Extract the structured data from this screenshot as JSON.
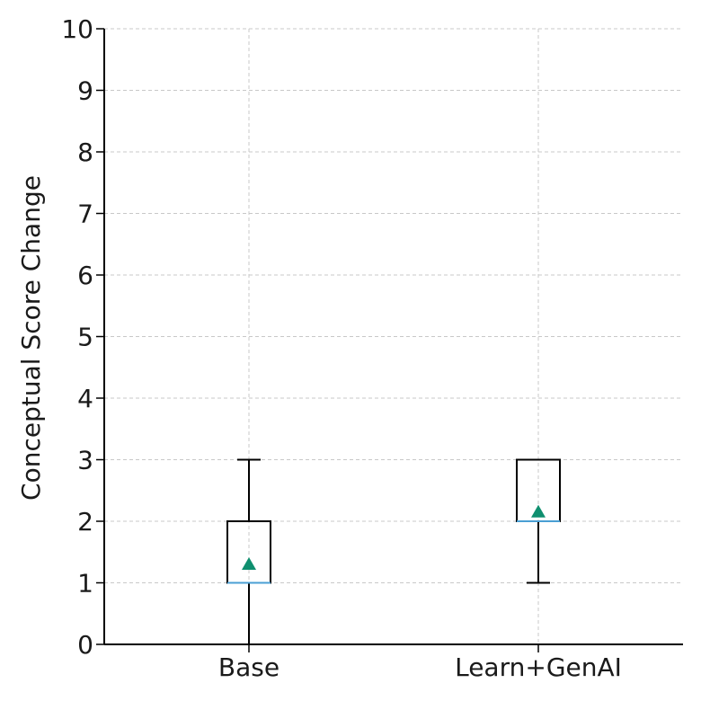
{
  "chart_data": {
    "type": "boxplot",
    "title": "",
    "xlabel": "",
    "ylabel": "Conceptual Score Change",
    "ylim": [
      0,
      10
    ],
    "yticks": [
      0,
      1,
      2,
      3,
      4,
      5,
      6,
      7,
      8,
      9,
      10
    ],
    "grid": true,
    "categories": [
      "Base",
      "Learn+GenAI"
    ],
    "boxes": [
      {
        "name": "Base",
        "whisker_low": 0,
        "q1": 1,
        "median": 1,
        "q3": 2,
        "whisker_high": 3,
        "mean": 1.3
      },
      {
        "name": "Learn+GenAI",
        "whisker_low": 1,
        "q1": 2,
        "median": 2,
        "q3": 3,
        "whisker_high": 3,
        "mean": 2.15
      }
    ],
    "colors": {
      "box": "#000000",
      "median": "#4a9fd4",
      "mean_marker": "#0f8f6f",
      "grid": "#c8c8c8",
      "axis": "#000000"
    }
  }
}
